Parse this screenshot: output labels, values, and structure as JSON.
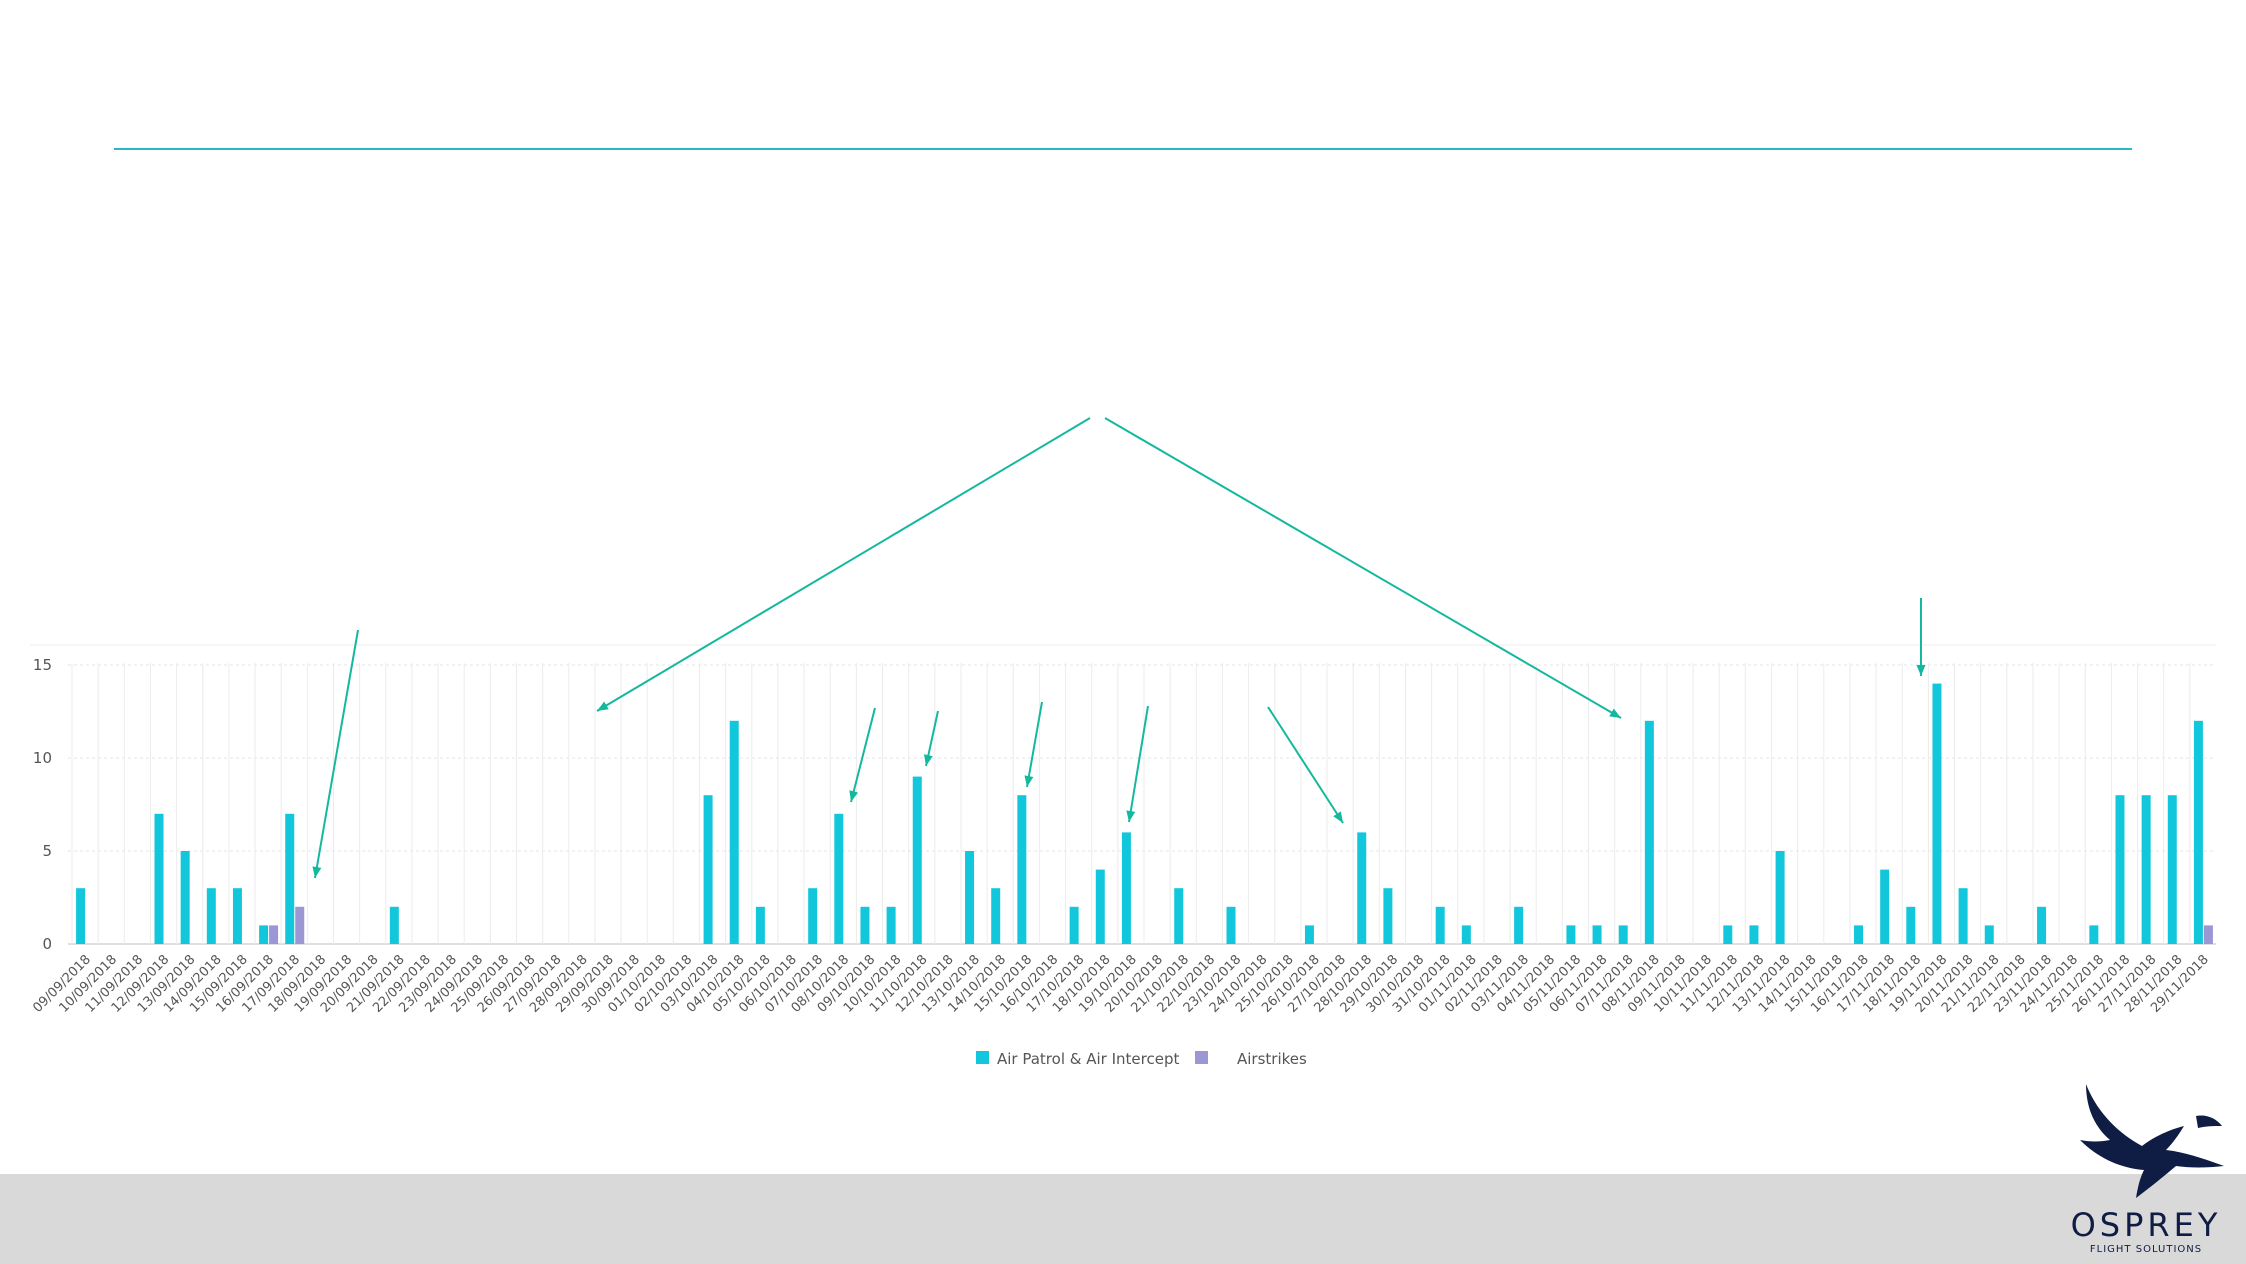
{
  "logo": {
    "brand": "OSPREY",
    "tagline": "FLIGHT SOLUTIONS"
  },
  "colors": {
    "rule": "#2ab7c4",
    "arrow": "#14b89e"
  },
  "chart_data": {
    "type": "bar",
    "ylim": [
      0,
      15
    ],
    "yticks": [
      0,
      5,
      10,
      15
    ],
    "grid": true,
    "legend_position": "bottom",
    "categories": [
      "09/09/2018",
      "10/09/2018",
      "11/09/2018",
      "12/09/2018",
      "13/09/2018",
      "14/09/2018",
      "15/09/2018",
      "16/09/2018",
      "17/09/2018",
      "18/09/2018",
      "19/09/2018",
      "20/09/2018",
      "21/09/2018",
      "22/09/2018",
      "23/09/2018",
      "24/09/2018",
      "25/09/2018",
      "26/09/2018",
      "27/09/2018",
      "28/09/2018",
      "29/09/2018",
      "30/09/2018",
      "01/10/2018",
      "02/10/2018",
      "03/10/2018",
      "04/10/2018",
      "05/10/2018",
      "06/10/2018",
      "07/10/2018",
      "08/10/2018",
      "09/10/2018",
      "10/10/2018",
      "11/10/2018",
      "12/10/2018",
      "13/10/2018",
      "14/10/2018",
      "15/10/2018",
      "16/10/2018",
      "17/10/2018",
      "18/10/2018",
      "19/10/2018",
      "20/10/2018",
      "21/10/2018",
      "22/10/2018",
      "23/10/2018",
      "24/10/2018",
      "25/10/2018",
      "26/10/2018",
      "27/10/2018",
      "28/10/2018",
      "29/10/2018",
      "30/10/2018",
      "31/10/2018",
      "01/11/2018",
      "02/11/2018",
      "03/11/2018",
      "04/11/2018",
      "05/11/2018",
      "06/11/2018",
      "07/11/2018",
      "08/11/2018",
      "09/11/2018",
      "10/11/2018",
      "11/11/2018",
      "12/11/2018",
      "13/11/2018",
      "14/11/2018",
      "15/11/2018",
      "16/11/2018",
      "17/11/2018",
      "18/11/2018",
      "19/11/2018",
      "20/11/2018",
      "21/11/2018",
      "22/11/2018",
      "23/11/2018",
      "24/11/2018",
      "25/11/2018",
      "26/11/2018",
      "27/11/2018",
      "28/11/2018",
      "29/11/2018"
    ],
    "series": [
      {
        "name": "Air Patrol & Air Intercept",
        "color": "#12c7dc",
        "values": [
          3,
          0,
          0,
          7,
          5,
          3,
          3,
          1,
          7,
          0,
          0,
          0,
          2,
          0,
          0,
          0,
          0,
          0,
          0,
          0,
          0,
          0,
          0,
          0,
          8,
          12,
          2,
          0,
          3,
          7,
          2,
          2,
          9,
          0,
          5,
          3,
          8,
          0,
          2,
          4,
          6,
          0,
          3,
          0,
          2,
          0,
          0,
          1,
          0,
          6,
          3,
          0,
          2,
          1,
          0,
          2,
          0,
          1,
          1,
          1,
          12,
          0,
          0,
          1,
          1,
          5,
          0,
          0,
          1,
          4,
          2,
          14,
          3,
          1,
          0,
          2,
          0,
          1,
          8,
          8,
          8,
          12
        ]
      },
      {
        "name": "Airstrikes",
        "color": "#9a97d4",
        "values": [
          0,
          0,
          0,
          0,
          0,
          0,
          0,
          1,
          2,
          0,
          0,
          0,
          0,
          0,
          0,
          0,
          0,
          0,
          0,
          0,
          0,
          0,
          0,
          0,
          0,
          0,
          0,
          0,
          0,
          0,
          0,
          0,
          0,
          0,
          0,
          0,
          0,
          0,
          0,
          0,
          0,
          0,
          0,
          0,
          0,
          0,
          0,
          0,
          0,
          0,
          0,
          0,
          0,
          0,
          0,
          0,
          0,
          0,
          0,
          0,
          0,
          0,
          0,
          0,
          0,
          0,
          0,
          0,
          0,
          0,
          0,
          0,
          0,
          0,
          0,
          0,
          0,
          0,
          0,
          0,
          0,
          1
        ]
      }
    ]
  }
}
